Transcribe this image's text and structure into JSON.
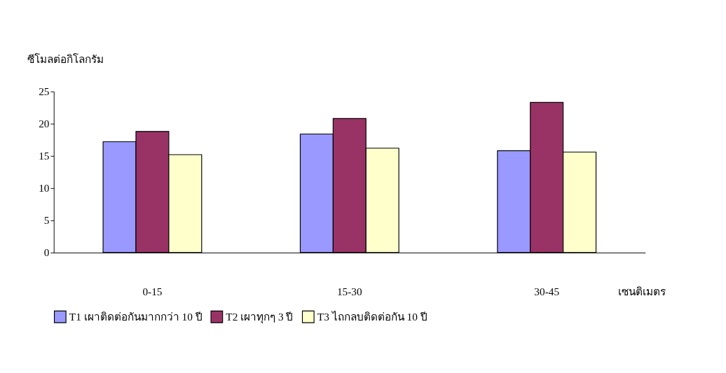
{
  "chart_data": {
    "type": "bar",
    "categories": [
      "0-15",
      "15-30",
      "30-45"
    ],
    "xlabel": "เซนติเมตร",
    "ylabel": "ซีโมลต่อกิโลกรัม",
    "series": [
      {
        "name": "T1 เผาติดต่อกันมากกว่า 10 ปี",
        "color": "#9999ff",
        "values": [
          17.2,
          18.4,
          15.8
        ]
      },
      {
        "name": "T2 เผาทุกๆ 3 ปี",
        "color": "#993366",
        "values": [
          18.8,
          20.8,
          23.3
        ]
      },
      {
        "name": "T3 ไถกลบติดต่อกัน 10 ปี",
        "color": "#ffffcc",
        "values": [
          15.2,
          16.2,
          15.6
        ]
      }
    ],
    "ylim": [
      0,
      25
    ],
    "yticks": [
      0,
      5,
      10,
      15,
      20,
      25
    ],
    "grid": false,
    "legend": "bottom"
  }
}
